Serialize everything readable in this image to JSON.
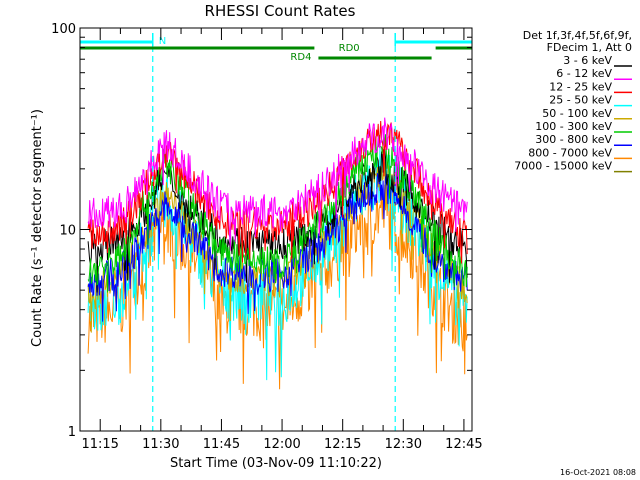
{
  "chart_data": {
    "type": "line",
    "title": "RHESSI Count Rates",
    "xlabel": "Start Time (03-Nov-09 11:10:22)",
    "ylabel": "Count Rate (s⁻¹ detector segment⁻¹)",
    "y_scale": "log",
    "ylim": [
      1,
      100
    ],
    "xlim": [
      "11:10",
      "12:47"
    ],
    "y_tick_labels": [
      "1",
      "10",
      "100"
    ],
    "x_tick_labels": [
      "11:15",
      "11:30",
      "11:45",
      "12:00",
      "12:15",
      "12:30",
      "12:45"
    ],
    "grid": false,
    "legend_header": [
      "Det 1f,3f,4f,5f,6f,9f,",
      "FDecim 1, Att 0"
    ],
    "legend_position": "right",
    "footer_timestamp": "16-Oct-2021 08:08",
    "series": [
      {
        "name": "3 - 6 keV",
        "color": "#000000",
        "x": [
          "11:12",
          "11:20",
          "11:25",
          "11:31",
          "11:36",
          "11:45",
          "12:00",
          "12:10",
          "12:20",
          "12:25",
          "12:30",
          "12:38",
          "12:46"
        ],
        "values": [
          8.1,
          8.7,
          11.5,
          19.0,
          14.0,
          9.0,
          8.3,
          10.5,
          18.0,
          21.0,
          16.5,
          10.5,
          8.0
        ]
      },
      {
        "name": "6 - 12 keV",
        "color": "#ff00ff",
        "x": [
          "11:12",
          "11:20",
          "11:25",
          "11:31",
          "11:36",
          "11:45",
          "12:00",
          "12:10",
          "12:20",
          "12:25",
          "12:30",
          "12:38",
          "12:46"
        ],
        "values": [
          11.7,
          12.5,
          17.5,
          27.0,
          20.5,
          13.0,
          12.2,
          16.0,
          26.5,
          30.5,
          24.0,
          15.5,
          11.8
        ]
      },
      {
        "name": "12 - 25 keV",
        "color": "#ff0000",
        "x": [
          "11:12",
          "11:20",
          "11:25",
          "11:31",
          "11:36",
          "11:45",
          "12:00",
          "12:10",
          "12:20",
          "12:25",
          "12:30",
          "12:38",
          "12:46"
        ],
        "values": [
          9.4,
          10.3,
          14.5,
          24.0,
          18.5,
          11.0,
          10.4,
          14.5,
          26.5,
          31.0,
          24.5,
          13.0,
          9.0
        ]
      },
      {
        "name": "25 - 50 keV",
        "color": "#00ffff",
        "x": [
          "11:12",
          "11:20",
          "11:25",
          "11:31",
          "11:36",
          "11:45",
          "12:00",
          "12:10",
          "12:20",
          "12:25",
          "12:30",
          "12:38",
          "12:46"
        ],
        "values": [
          4.1,
          4.9,
          7.8,
          14.5,
          10.0,
          5.2,
          4.6,
          7.8,
          15.5,
          18.5,
          13.5,
          6.8,
          3.9
        ]
      },
      {
        "name": "50 - 100 keV",
        "color": "#ccaa00",
        "x": [
          "11:12",
          "11:20",
          "11:25",
          "11:31",
          "11:36",
          "11:45",
          "12:00",
          "12:10",
          "12:20",
          "12:25",
          "12:30",
          "12:38",
          "12:46"
        ],
        "values": [
          4.9,
          5.7,
          8.6,
          15.0,
          11.0,
          6.0,
          5.5,
          8.6,
          16.0,
          19.0,
          14.0,
          7.6,
          4.8
        ]
      },
      {
        "name": "100 - 300 keV",
        "color": "#00cc00",
        "x": [
          "11:12",
          "11:20",
          "11:25",
          "11:31",
          "11:36",
          "11:45",
          "12:00",
          "12:10",
          "12:20",
          "12:25",
          "12:30",
          "12:38",
          "12:46"
        ],
        "values": [
          6.0,
          7.3,
          12.0,
          22.0,
          15.5,
          7.6,
          6.7,
          11.0,
          21.5,
          25.5,
          18.5,
          9.3,
          6.0
        ]
      },
      {
        "name": "300 - 800 keV",
        "color": "#0000ff",
        "x": [
          "11:12",
          "11:20",
          "11:25",
          "11:31",
          "11:36",
          "11:45",
          "12:00",
          "12:10",
          "12:20",
          "12:25",
          "12:30",
          "12:38",
          "12:46"
        ],
        "values": [
          5.4,
          6.2,
          8.6,
          13.0,
          10.5,
          6.3,
          5.9,
          8.5,
          14.5,
          16.5,
          13.0,
          7.2,
          5.3
        ]
      },
      {
        "name": "800 - 7000 keV",
        "color": "#ff8800",
        "x": [
          "11:12",
          "11:20",
          "11:25",
          "11:31",
          "11:36",
          "11:45",
          "12:00",
          "12:10",
          "12:20",
          "12:25",
          "12:30",
          "12:38",
          "12:46"
        ],
        "values": [
          3.5,
          4.1,
          6.5,
          11.0,
          8.2,
          4.3,
          3.9,
          6.3,
          11.0,
          12.5,
          9.5,
          5.1,
          3.3
        ]
      },
      {
        "name": "7000 - 15000 keV",
        "color": "#808000",
        "x": [],
        "values": []
      }
    ],
    "annotations": [
      {
        "label": "N",
        "type": "night",
        "color": "#00ffff",
        "start": "11:10",
        "end": "11:28"
      },
      {
        "label": "",
        "type": "night",
        "color": "#00ffff",
        "start": "12:28",
        "end": "12:47"
      },
      {
        "label": "RD0",
        "type": "radiation",
        "color": "#008800",
        "start": "11:10",
        "end": "12:47"
      },
      {
        "label": "RD4",
        "type": "radiation",
        "color": "#008800",
        "start": "12:09",
        "end": "12:37"
      }
    ]
  }
}
